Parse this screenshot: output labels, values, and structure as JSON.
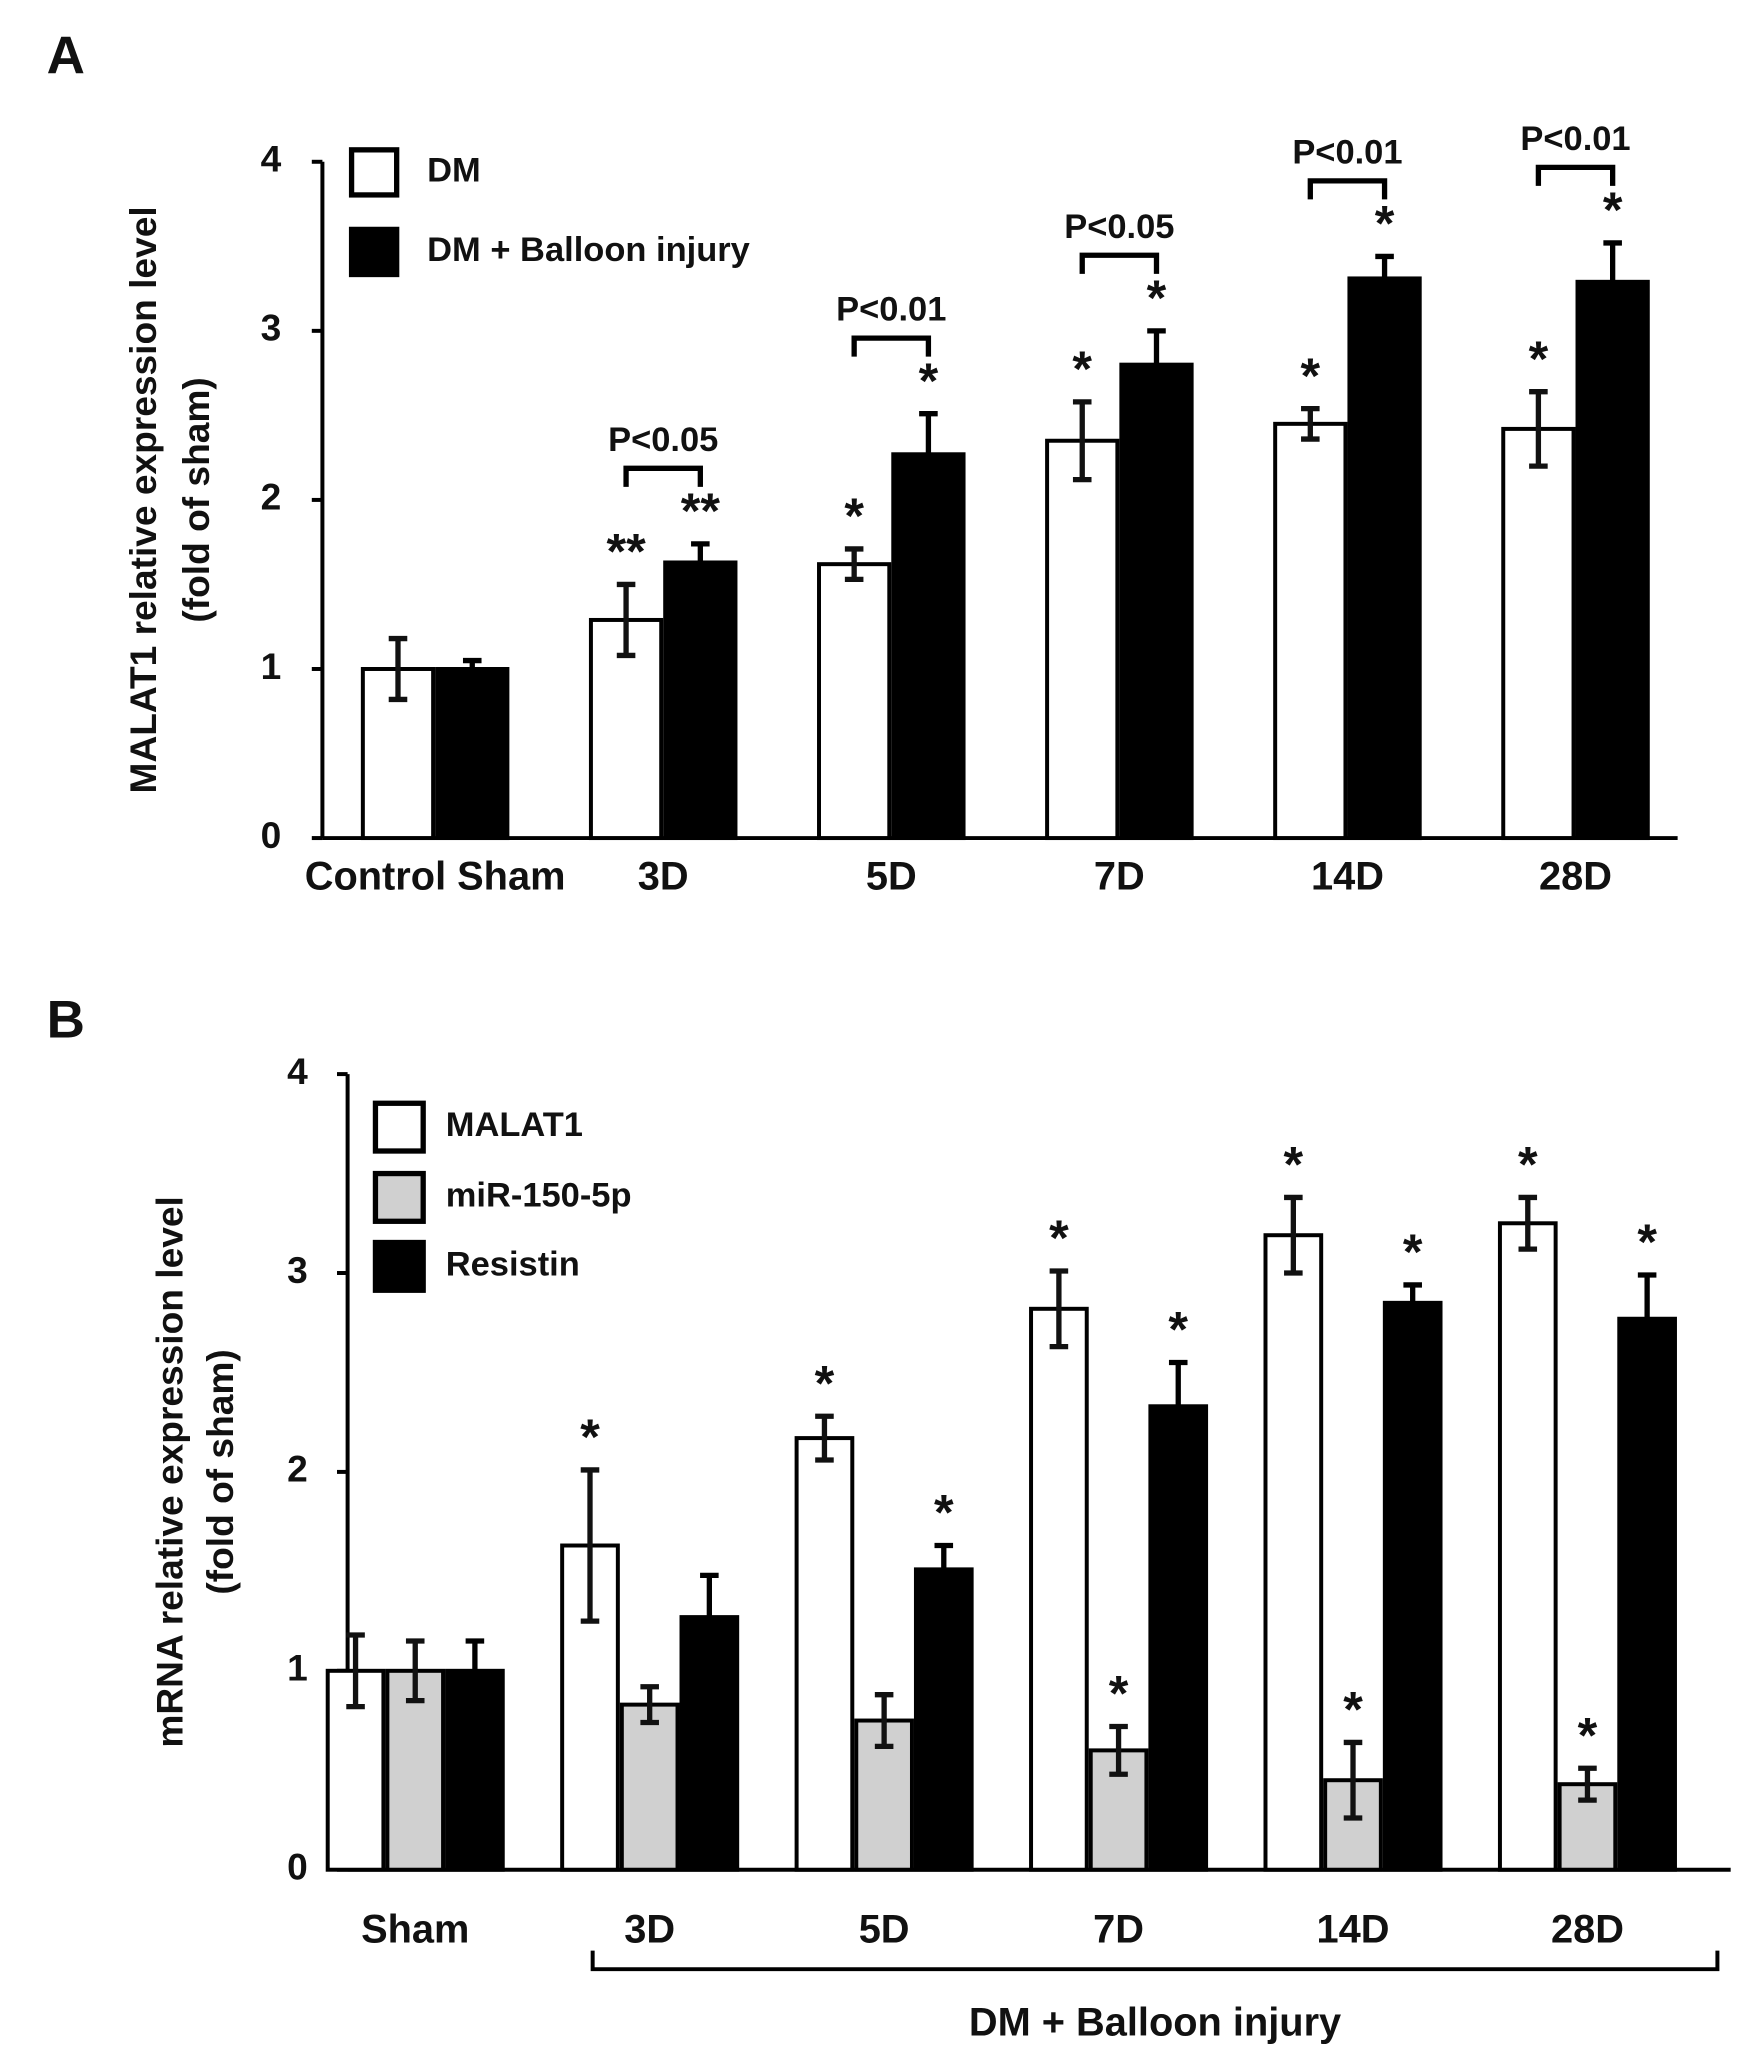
{
  "chart_data": [
    {
      "type": "bar",
      "panel": "A",
      "ylabel": [
        "MALAT1 relative expression level",
        "(fold of sham)"
      ],
      "categories": [
        "Control Sham",
        "3D",
        "5D",
        "7D",
        "14D",
        "28D"
      ],
      "ylim": [
        0,
        4
      ],
      "yticks": [
        0,
        1,
        2,
        3,
        4
      ],
      "series": [
        {
          "name": "DM",
          "color": "#ffffff",
          "values": [
            1.0,
            1.29,
            1.62,
            2.35,
            2.45,
            2.42
          ],
          "errors": [
            0.18,
            0.21,
            0.09,
            0.23,
            0.09,
            0.22
          ],
          "significance": [
            null,
            "**",
            "*",
            "*",
            "*",
            "*"
          ]
        },
        {
          "name": "DM + Balloon injury",
          "color": "#000000",
          "values": [
            1.0,
            1.63,
            2.27,
            2.8,
            3.31,
            3.29
          ],
          "errors": [
            0.05,
            0.11,
            0.24,
            0.2,
            0.13,
            0.23
          ],
          "significance": [
            null,
            "**",
            "*",
            "*",
            "*",
            "*"
          ]
        }
      ],
      "comparisons": [
        null,
        "P<0.05",
        "P<0.01",
        "P<0.05",
        "P<0.01",
        "P<0.01"
      ]
    },
    {
      "type": "bar",
      "panel": "B",
      "ylabel": [
        "mRNA relative expression level",
        "(fold of sham)"
      ],
      "categories": [
        "Sham",
        "3D",
        "5D",
        "7D",
        "14D",
        "28D"
      ],
      "group_label": "DM + Balloon injury",
      "ylim": [
        0,
        4
      ],
      "yticks": [
        0,
        1,
        2,
        3,
        4
      ],
      "series": [
        {
          "name": "MALAT1",
          "color": "#ffffff",
          "values": [
            1.0,
            1.63,
            2.17,
            2.82,
            3.19,
            3.25
          ],
          "errors": [
            0.18,
            0.38,
            0.11,
            0.19,
            0.19,
            0.13
          ],
          "significance": [
            null,
            "*",
            "*",
            "*",
            "*",
            "*"
          ]
        },
        {
          "name": "miR-150-5p",
          "color": "#d0d0d0",
          "values": [
            1.0,
            0.83,
            0.75,
            0.6,
            0.45,
            0.43
          ],
          "errors": [
            0.15,
            0.09,
            0.13,
            0.12,
            0.19,
            0.08
          ],
          "significance": [
            null,
            null,
            null,
            "*",
            "*",
            "*"
          ]
        },
        {
          "name": "Resistin",
          "color": "#000000",
          "values": [
            1.0,
            1.27,
            1.51,
            2.33,
            2.85,
            2.77
          ],
          "errors": [
            0.15,
            0.21,
            0.12,
            0.22,
            0.09,
            0.22
          ],
          "significance": [
            null,
            null,
            "*",
            "*",
            "*",
            "*"
          ]
        }
      ]
    }
  ]
}
